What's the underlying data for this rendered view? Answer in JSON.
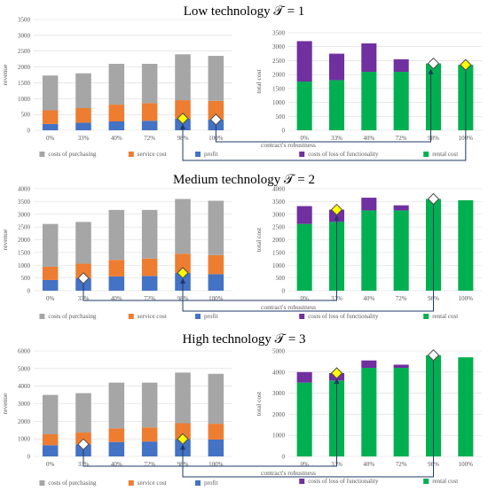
{
  "colors": {
    "purchasing": "#a6a6a6",
    "service": "#ed7d31",
    "profit": "#4472c4",
    "loss": "#7030a0",
    "rental": "#00b050",
    "axis_text": "#595959",
    "grid": "#d9d9d9",
    "marker_white": "#ffffff",
    "marker_yellow": "#ffff00",
    "arrow": "#1f3864"
  },
  "icons": {
    "marker": "diamond-marker-icon",
    "arrow": "connector-arrow-icon"
  },
  "chart_data": [
    {
      "type": "bar",
      "stacked": true,
      "panel": "low-left",
      "title": "Low technology 𝒯 = 1",
      "xlabel": "contract's robustness",
      "ylabel": "revenue",
      "categories": [
        "0%",
        "33%",
        "40%",
        "72%",
        "98%",
        "100%"
      ],
      "ylim": [
        0,
        3500
      ],
      "yticks": [
        0,
        500,
        1000,
        1500,
        2000,
        2500,
        3000,
        3500
      ],
      "series": [
        {
          "name": "profit",
          "key": "profit",
          "values": [
            200,
            240,
            280,
            300,
            370,
            340
          ]
        },
        {
          "name": "service cost",
          "key": "service",
          "values": [
            430,
            460,
            530,
            560,
            580,
            590
          ]
        },
        {
          "name": "costs of purchasing",
          "key": "purchasing",
          "values": [
            1100,
            1100,
            1290,
            1240,
            1450,
            1420
          ]
        }
      ],
      "legend_order": [
        "purchasing",
        "service",
        "profit"
      ],
      "markers": [
        {
          "category": "98%",
          "value": 370,
          "style": "yellow"
        },
        {
          "category": "100%",
          "value": 340,
          "style": "white"
        }
      ]
    },
    {
      "type": "bar",
      "stacked": true,
      "panel": "low-right",
      "xlabel": "contract's robustness",
      "ylabel": "total cost",
      "categories": [
        "0%",
        "33%",
        "40%",
        "72%",
        "98%",
        "100%"
      ],
      "ylim": [
        0,
        3500
      ],
      "yticks": [
        0,
        500,
        1000,
        1500,
        2000,
        2500,
        3000,
        3500
      ],
      "series": [
        {
          "name": "rental cost",
          "key": "rental",
          "values": [
            1750,
            1800,
            2100,
            2100,
            2400,
            2350
          ]
        },
        {
          "name": "costs of loss of functionality",
          "key": "loss",
          "values": [
            1450,
            950,
            1020,
            450,
            0,
            0
          ]
        }
      ],
      "legend_order": [
        "loss",
        "rental"
      ],
      "markers": [
        {
          "category": "98%",
          "value": 2400,
          "style": "white"
        },
        {
          "category": "100%",
          "value": 2350,
          "style": "yellow"
        }
      ]
    },
    {
      "type": "bar",
      "stacked": true,
      "panel": "med-left",
      "title": "Medium technology 𝒯 = 2",
      "xlabel": "contract's robustness",
      "ylabel": "revenue",
      "categories": [
        "0%",
        "33%",
        "40%",
        "72%",
        "98%",
        "100%"
      ],
      "ylim": [
        0,
        4000
      ],
      "yticks": [
        0,
        500,
        1000,
        1500,
        2000,
        2500,
        3000,
        3500,
        4000
      ],
      "series": [
        {
          "name": "profit",
          "key": "profit",
          "values": [
            420,
            490,
            560,
            580,
            700,
            650
          ]
        },
        {
          "name": "service cost",
          "key": "service",
          "values": [
            520,
            570,
            650,
            680,
            750,
            750
          ]
        },
        {
          "name": "costs of purchasing",
          "key": "purchasing",
          "values": [
            1680,
            1640,
            1960,
            1910,
            2150,
            2130
          ]
        }
      ],
      "legend_order": [
        "purchasing",
        "service",
        "profit"
      ],
      "markers": [
        {
          "category": "33%",
          "value": 490,
          "style": "white"
        },
        {
          "category": "98%",
          "value": 700,
          "style": "yellow"
        }
      ]
    },
    {
      "type": "bar",
      "stacked": true,
      "panel": "med-right",
      "xlabel": "contract's robustness",
      "ylabel": "total cost",
      "categories": [
        "0%",
        "33%",
        "40%",
        "72%",
        "98%",
        "100%"
      ],
      "ylim": [
        0,
        4000
      ],
      "yticks": [
        0,
        500,
        1000,
        1500,
        2000,
        2500,
        3000,
        3500,
        4000
      ],
      "series": [
        {
          "name": "rental cost",
          "key": "rental",
          "values": [
            2620,
            2700,
            3150,
            3150,
            3600,
            3550
          ]
        },
        {
          "name": "costs of loss of functionality",
          "key": "loss",
          "values": [
            700,
            480,
            500,
            200,
            0,
            0
          ]
        }
      ],
      "legend_order": [
        "loss",
        "rental"
      ],
      "markers": [
        {
          "category": "33%",
          "value": 3180,
          "style": "yellow"
        },
        {
          "category": "98%",
          "value": 3600,
          "style": "white"
        }
      ]
    },
    {
      "type": "bar",
      "stacked": true,
      "panel": "high-left",
      "title": "High technology 𝒯 = 3",
      "xlabel": "contract's robustness",
      "ylabel": "revenue",
      "categories": [
        "0%",
        "33%",
        "40%",
        "72%",
        "98%",
        "100%"
      ],
      "ylim": [
        0,
        6000
      ],
      "yticks": [
        0,
        1000,
        2000,
        3000,
        4000,
        5000,
        6000
      ],
      "series": [
        {
          "name": "profit",
          "key": "profit",
          "values": [
            640,
            690,
            820,
            850,
            990,
            960
          ]
        },
        {
          "name": "service cost",
          "key": "service",
          "values": [
            620,
            670,
            780,
            800,
            900,
            900
          ]
        },
        {
          "name": "costs of purchasing",
          "key": "purchasing",
          "values": [
            2240,
            2240,
            2600,
            2550,
            2880,
            2840
          ]
        }
      ],
      "legend_order": [
        "purchasing",
        "service",
        "profit"
      ],
      "markers": [
        {
          "category": "33%",
          "value": 690,
          "style": "white"
        },
        {
          "category": "98%",
          "value": 990,
          "style": "yellow"
        }
      ]
    },
    {
      "type": "bar",
      "stacked": true,
      "panel": "high-right",
      "xlabel": "contract's robustness",
      "ylabel": "total cost",
      "categories": [
        "0%",
        "33%",
        "40%",
        "72%",
        "98%",
        "100%"
      ],
      "ylim": [
        0,
        5000
      ],
      "yticks": [
        0,
        1000,
        2000,
        3000,
        4000,
        5000
      ],
      "series": [
        {
          "name": "rental cost",
          "key": "rental",
          "values": [
            3500,
            3600,
            4200,
            4200,
            4800,
            4700
          ]
        },
        {
          "name": "costs of loss of functionality",
          "key": "loss",
          "values": [
            500,
            350,
            350,
            150,
            0,
            0
          ]
        }
      ],
      "legend_order": [
        "loss",
        "rental"
      ],
      "markers": [
        {
          "category": "33%",
          "value": 3950,
          "style": "yellow"
        },
        {
          "category": "98%",
          "value": 4800,
          "style": "white"
        }
      ]
    }
  ]
}
